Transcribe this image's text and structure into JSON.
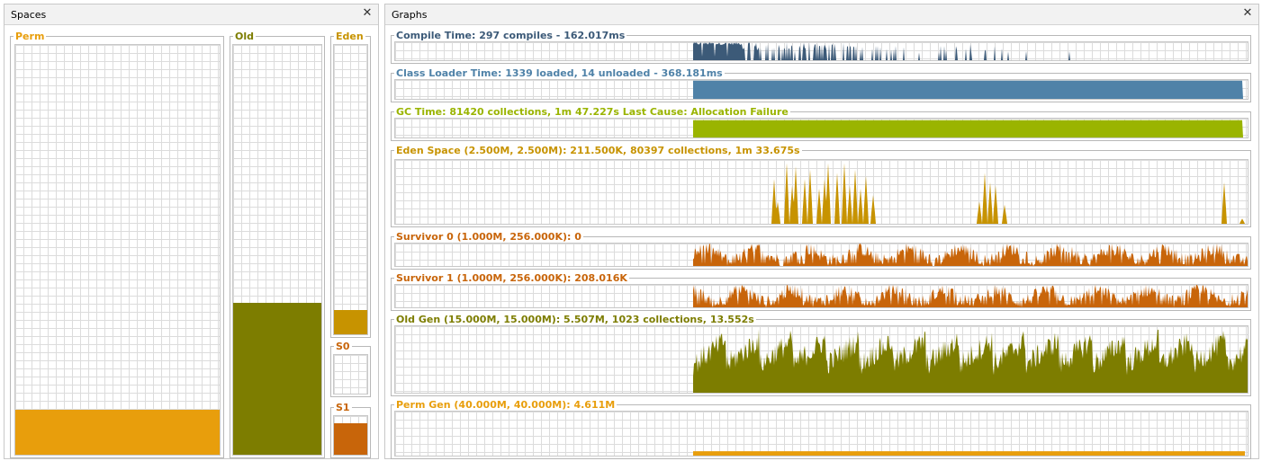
{
  "spaces_panel": {
    "title": "Spaces",
    "close_icon": "close-icon",
    "perm": {
      "label": "Perm",
      "color": "#e89e0c",
      "label_color": "#e89e0c",
      "fraction": 0.11
    },
    "old": {
      "label": "Old",
      "color": "#7d7d00",
      "label_color": "#7d7d00",
      "fraction": 0.37
    },
    "eden": {
      "label": "Eden",
      "color": "#c79300",
      "label_color": "#c79300",
      "fraction": 0.085
    },
    "s0": {
      "label": "S0",
      "color": "#c8650a",
      "label_color": "#c8650a",
      "fraction": 0.0
    },
    "s1": {
      "label": "S1",
      "color": "#c8650a",
      "label_color": "#c8650a",
      "fraction": 0.81
    }
  },
  "graphs_panel": {
    "title": "Graphs",
    "close_icon": "close-icon",
    "graphs": [
      {
        "id": "compile",
        "label": "Compile Time: 297 compiles - 162.017ms",
        "color": "#3c5a78",
        "label_color": "#3c5a78"
      },
      {
        "id": "classloader",
        "label": "Class Loader Time: 1339 loaded, 14 unloaded - 368.181ms",
        "color": "#4f82a8",
        "label_color": "#4f82a8"
      },
      {
        "id": "gc",
        "label": "GC Time: 81420 collections, 1m 47.227s  Last Cause: Allocation Failure",
        "color": "#9ab400",
        "label_color": "#9ab400"
      },
      {
        "id": "eden",
        "label": "Eden Space (2.500M, 2.500M): 211.500K, 80397 collections, 1m 33.675s",
        "color": "#c79300",
        "label_color": "#c79300"
      },
      {
        "id": "s0",
        "label": "Survivor 0 (1.000M, 256.000K): 0",
        "color": "#c8650a",
        "label_color": "#c8650a"
      },
      {
        "id": "s1",
        "label": "Survivor 1 (1.000M, 256.000K): 208.016K",
        "color": "#c8650a",
        "label_color": "#c8650a"
      },
      {
        "id": "oldgen",
        "label": "Old Gen (15.000M, 15.000M): 5.507M, 1023 collections, 13.552s",
        "color": "#7d7d00",
        "label_color": "#7d7d00"
      },
      {
        "id": "permgen",
        "label": "Perm Gen (40.000M, 40.000M): 4.611M",
        "color": "#e89e0c",
        "label_color": "#e89e0c"
      }
    ]
  }
}
